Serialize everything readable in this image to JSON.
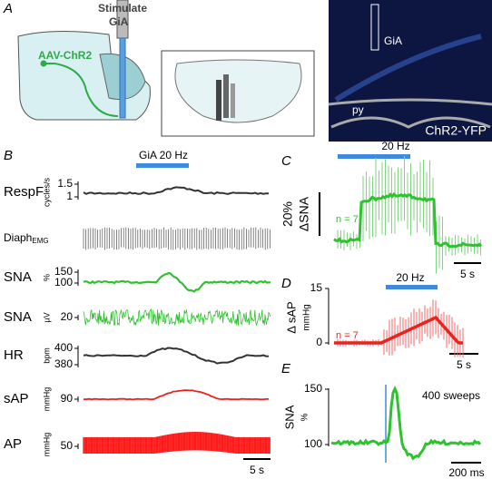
{
  "panels": {
    "A": {
      "label": "A",
      "stimulate": "Stimulate",
      "target": "GiA",
      "virus": "AAV-ChR2",
      "image_region": "GiA",
      "image_tract": "py",
      "image_caption": "ChR2-YFP"
    },
    "B": {
      "label": "B",
      "stim": "GiA 20 Hz",
      "scale": "5 s",
      "traces": [
        {
          "name": "RespF",
          "unit": "cycles/s",
          "ticks": [
            1.5,
            1
          ]
        },
        {
          "name": "Diaph",
          "sub": "EMG"
        },
        {
          "name": "SNA",
          "unit": "%",
          "ticks": [
            150,
            100
          ]
        },
        {
          "name": "SNA",
          "unit": "µV",
          "ticks": [
            20
          ]
        },
        {
          "name": "HR",
          "unit": "bpm",
          "ticks": [
            400,
            380
          ]
        },
        {
          "name": "sAP",
          "unit": "mmHg",
          "ticks": [
            90
          ]
        },
        {
          "name": "AP",
          "unit": "mmHg",
          "ticks": [
            50
          ]
        }
      ]
    },
    "C": {
      "label": "C",
      "stim": "20 Hz",
      "scale_bar": "20%",
      "ylabel": "ΔSNA",
      "n": "n = 7",
      "scale": "5 s"
    },
    "D": {
      "label": "D",
      "stim": "20 Hz",
      "ylabel": "Δ sAP",
      "unit": "mmHg",
      "ticks": [
        15,
        0
      ],
      "n": "n = 7",
      "scale": "5 s"
    },
    "E": {
      "label": "E",
      "ylabel": "SNA",
      "unit": "%",
      "ticks": [
        150,
        100
      ],
      "note": "400 sweeps",
      "scale": "200 ms"
    }
  }
}
